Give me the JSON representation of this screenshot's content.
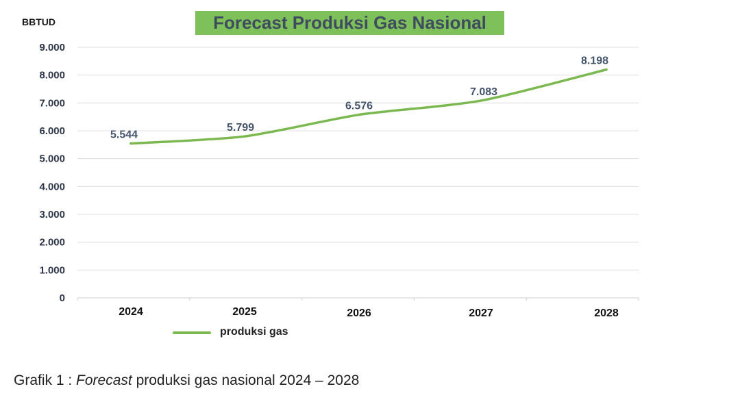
{
  "chart_data": {
    "type": "line",
    "title": "Forecast Produksi Gas Nasional",
    "ylabel": "BBTUD",
    "xlabel": "",
    "categories": [
      "2024",
      "2025",
      "2026",
      "2027",
      "2028"
    ],
    "series": [
      {
        "name": "produksi gas",
        "values": [
          5544,
          5799,
          6576,
          7083,
          8198
        ],
        "color": "#7cb850"
      }
    ],
    "data_labels": [
      "5.544",
      "5.799",
      "6.576",
      "7.083",
      "8.198"
    ],
    "y_ticks": [
      "0",
      "1.000",
      "2.000",
      "3.000",
      "4.000",
      "5.000",
      "6.000",
      "7.000",
      "8.000",
      "9.000"
    ],
    "ylim": [
      0,
      9000
    ],
    "grid": true,
    "legend_position": "bottom-left"
  },
  "caption": {
    "prefix": "Grafik 1 : ",
    "italic": "Forecast",
    "suffix": " produksi gas nasional 2024 – 2028"
  },
  "colors": {
    "title_background": "#7ec15a",
    "title_text": "#3f4b5e",
    "line": "#7cb850",
    "gridline": "#dddddd",
    "data_label": "#44546a"
  }
}
